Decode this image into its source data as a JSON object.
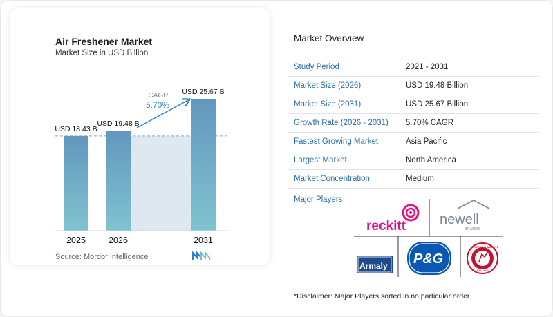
{
  "chart_data": {
    "type": "bar",
    "title": "Air Freshener Market",
    "subtitle": "Market Size in USD Billion",
    "categories": [
      "2025",
      "2026",
      "2031"
    ],
    "values": [
      18.43,
      19.48,
      25.67
    ],
    "value_labels": [
      "USD 18.43 B",
      "USD 19.48 B",
      "USD 25.67 B"
    ],
    "cagr_label": "CAGR",
    "cagr_value": "5.70%",
    "ylim": [
      0,
      25.67
    ],
    "colors": {
      "bar": "#6297c0",
      "bar_bottom": "#7fc3cf",
      "band": "#dde8f1",
      "accent": "#2c85c2"
    }
  },
  "source": "Source: Mordor Intelligence",
  "overview": {
    "title": "Market Overview",
    "rows": [
      {
        "key": "Study Period",
        "value": "2021 - 2031"
      },
      {
        "key": "Market Size (2026)",
        "value": "USD 19.48 Billion"
      },
      {
        "key": "Market Size (2031)",
        "value": "USD 25.67 Billion"
      },
      {
        "key": "Growth Rate (2026 - 2031)",
        "value": "5.70% CAGR"
      },
      {
        "key": "Fastest Growing Market",
        "value": "Asia Pacific"
      },
      {
        "key": "Largest Market",
        "value": "North America"
      },
      {
        "key": "Market Concentration",
        "value": "Medium"
      }
    ]
  },
  "players": {
    "label": "Major Players",
    "logos": [
      "reckitt",
      "newell",
      "BRANDS",
      "Armaly",
      "P&G",
      "CHURCH & DWIGHT",
      "CO., INC."
    ]
  },
  "disclaimer": "*Disclaimer: Major Players sorted in no particular order"
}
